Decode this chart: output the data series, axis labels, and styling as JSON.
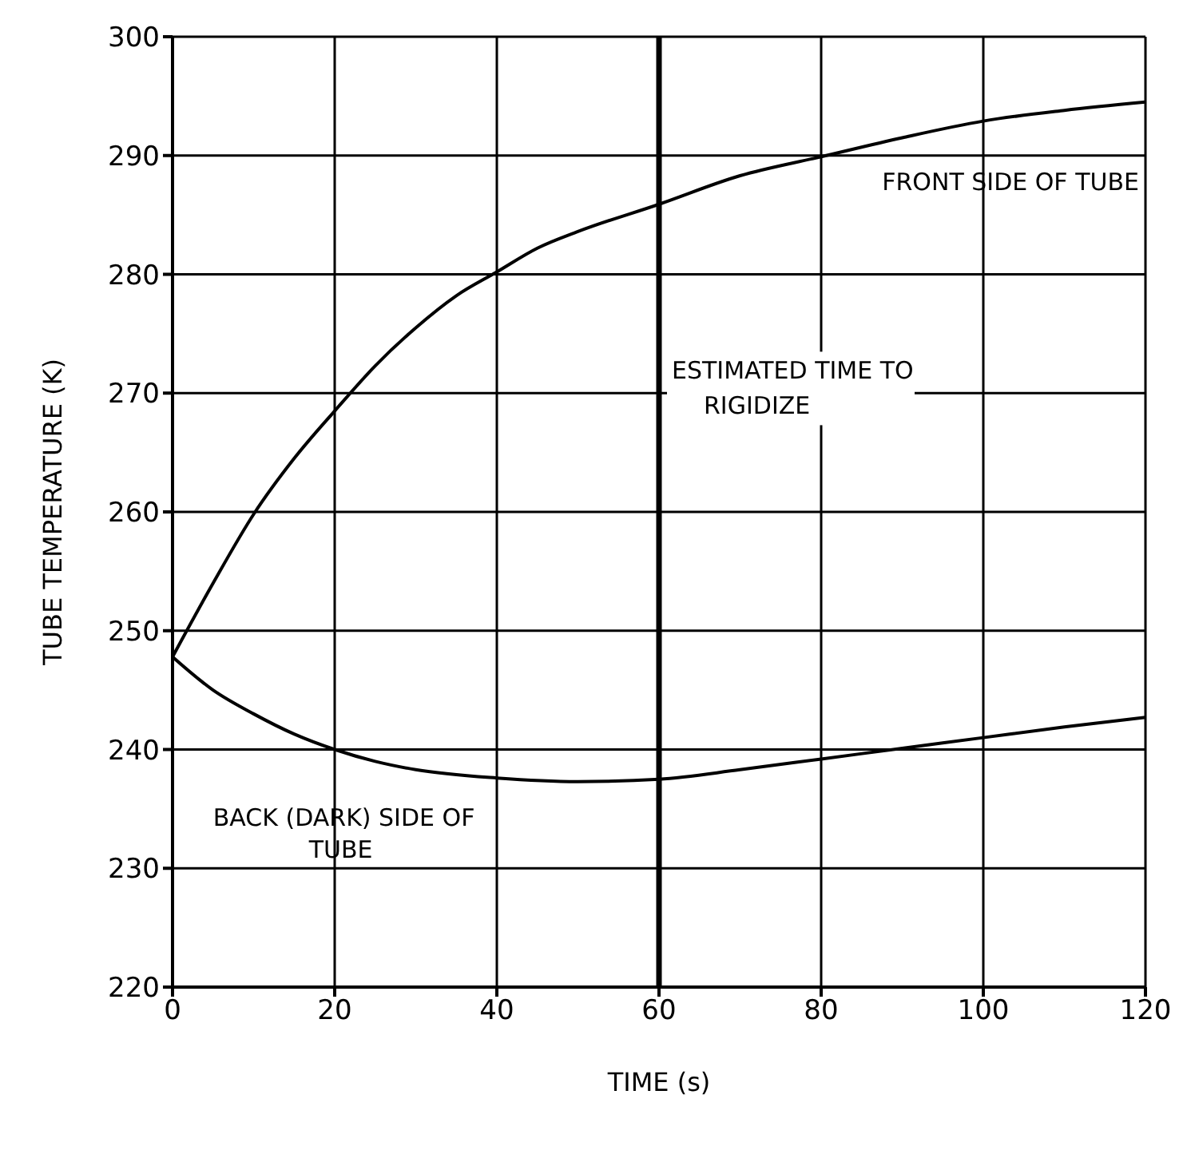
{
  "chart_data": {
    "type": "line",
    "xlabel": "TIME (s)",
    "ylabel": "TUBE TEMPERATURE (K)",
    "xlim": [
      0,
      120
    ],
    "xticks": [
      0,
      20,
      40,
      60,
      80,
      100,
      120
    ],
    "ylim": [
      220,
      300
    ],
    "yticks": [
      220,
      230,
      240,
      250,
      260,
      270,
      280,
      290,
      300
    ],
    "grid": true,
    "marker": "none",
    "line_style": "solid",
    "series": [
      {
        "name": "FRONT SIDE OF TUBE",
        "color": "#000000",
        "x": [
          0,
          5,
          10,
          15,
          20,
          25,
          30,
          35,
          40,
          45,
          50,
          60,
          70,
          80,
          90,
          100,
          110,
          120
        ],
        "values": [
          247.8,
          254,
          259.8,
          264.5,
          268.5,
          272.3,
          275.5,
          278.2,
          280.2,
          282.2,
          283.6,
          285.9,
          288.3,
          289.9,
          291.5,
          292.9,
          293.8,
          294.5
        ]
      },
      {
        "name": "BACK (DARK) SIDE OF TUBE",
        "color": "#000000",
        "x": [
          0,
          5,
          10,
          15,
          20,
          25,
          30,
          40,
          50,
          60,
          70,
          80,
          90,
          100,
          110,
          120
        ],
        "values": [
          247.8,
          245,
          243,
          241.3,
          240,
          239,
          238.3,
          237.6,
          237.3,
          237.5,
          238.3,
          239.2,
          240.1,
          241,
          241.9,
          242.7
        ]
      }
    ],
    "ref_lines": [
      {
        "axis": "x",
        "value": 60,
        "label": "ESTIMATED TIME TO RIGIDIZE",
        "color": "#000000"
      }
    ]
  }
}
